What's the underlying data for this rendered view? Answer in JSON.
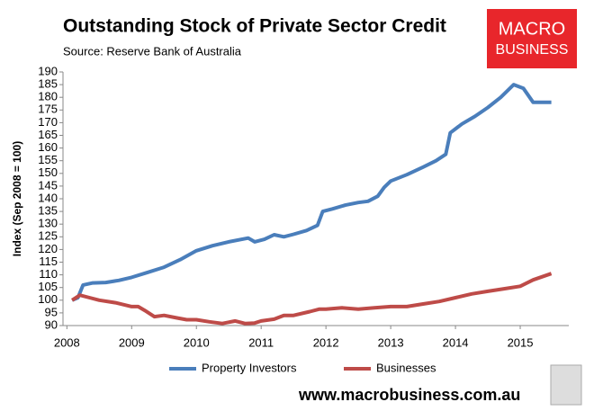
{
  "chart_data": {
    "type": "line",
    "title": "Outstanding Stock of Private Sector Credit",
    "subtitle": "Source: Reserve Bank of Australia",
    "ylabel": "Index (Sep 2008 = 100)",
    "xlim": [
      2007.94,
      2015.75
    ],
    "xticks": [
      2008,
      2009,
      2010,
      2011,
      2012,
      2013,
      2014,
      2015
    ],
    "ylim": [
      90,
      190
    ],
    "yticks": [
      90,
      95,
      100,
      105,
      110,
      115,
      120,
      125,
      130,
      135,
      140,
      145,
      150,
      155,
      160,
      165,
      170,
      175,
      180,
      185,
      190
    ],
    "grid": false,
    "legend": "bottom",
    "series": [
      {
        "name": "Property Investors",
        "color": "#4a7ebb",
        "x": [
          2008.08,
          2008.17,
          2008.25,
          2008.4,
          2008.6,
          2008.8,
          2009.0,
          2009.25,
          2009.5,
          2009.75,
          2010.0,
          2010.25,
          2010.5,
          2010.8,
          2010.9,
          2011.05,
          2011.2,
          2011.35,
          2011.5,
          2011.7,
          2011.87,
          2011.95,
          2012.1,
          2012.3,
          2012.5,
          2012.65,
          2012.8,
          2012.9,
          2013.0,
          2013.25,
          2013.5,
          2013.7,
          2013.85,
          2013.92,
          2014.1,
          2014.3,
          2014.5,
          2014.7,
          2014.9,
          2015.05,
          2015.2,
          2015.48
        ],
        "values": [
          100,
          101,
          106,
          106.8,
          107,
          107.8,
          109,
          111,
          113,
          116,
          119.5,
          121.5,
          123,
          124.5,
          123,
          124,
          125.8,
          125,
          126,
          127.5,
          129.5,
          135,
          136,
          137.5,
          138.5,
          139,
          141,
          144.5,
          147,
          149.5,
          152.5,
          155,
          157.5,
          166,
          169.5,
          172.5,
          176,
          180,
          185,
          183.5,
          178,
          178
        ]
      },
      {
        "name": "Businesses",
        "color": "#be4b48",
        "x": [
          2008.08,
          2008.2,
          2008.35,
          2008.5,
          2008.75,
          2009.0,
          2009.1,
          2009.2,
          2009.35,
          2009.5,
          2009.7,
          2009.85,
          2010.0,
          2010.2,
          2010.4,
          2010.6,
          2010.75,
          2010.9,
          2011.0,
          2011.2,
          2011.35,
          2011.5,
          2011.75,
          2011.9,
          2012.0,
          2012.25,
          2012.5,
          2012.75,
          2013.0,
          2013.25,
          2013.5,
          2013.75,
          2014.0,
          2014.25,
          2014.5,
          2014.75,
          2015.0,
          2015.2,
          2015.48
        ],
        "values": [
          100,
          102,
          101,
          100,
          99,
          97.5,
          97.5,
          96,
          93.5,
          94,
          93,
          92.3,
          92.3,
          91.5,
          90.8,
          91.8,
          90.8,
          91,
          91.8,
          92.5,
          94,
          94,
          95.5,
          96.5,
          96.5,
          97,
          96.5,
          97,
          97.5,
          97.5,
          98.5,
          99.5,
          101,
          102.5,
          103.5,
          104.5,
          105.5,
          108,
          110.5
        ]
      }
    ]
  },
  "logo": [
    "MACRO",
    "BUSINESS"
  ],
  "footer": "www.macrobusiness.com.au"
}
